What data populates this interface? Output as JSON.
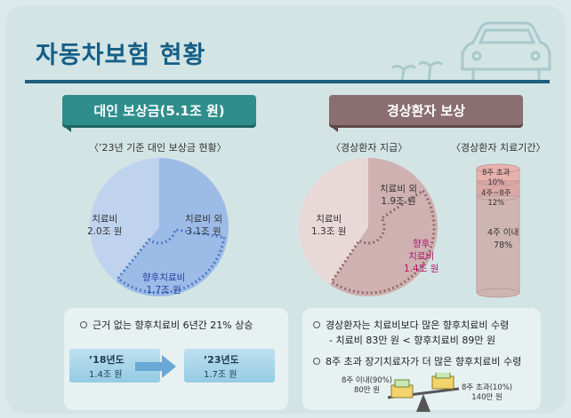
{
  "title": "자동차보험 현황",
  "left": {
    "ribbon": "대인 보상금(5.1조 원)",
    "chart_subtitle": "〈’23년 기준 대인 보상금 현황〉",
    "pie_labels": {
      "treatment_name": "치료비",
      "treatment_value": "2.0조 원",
      "other_name": "치료비 외",
      "other_value": "3.1조 원",
      "post_name": "향후치료비",
      "post_value": "1.7조 원"
    },
    "info_line": "근거 없는 향후치료비 6년간 21% 상승",
    "year_from": {
      "year": "’18년도",
      "value": "1.4조 원"
    },
    "year_to": {
      "year": "’23년도",
      "value": "1.7조 원"
    }
  },
  "right": {
    "ribbon": "경상환자 보상",
    "pie_subtitle": "〈경상환자 지급〉",
    "bar_subtitle": "〈경상환자 치료기간〉",
    "pie_labels": {
      "treatment_name": "치료비",
      "treatment_value": "1.3조 원",
      "other_name": "치료비 외",
      "other_value": "1.9조 원",
      "post_name_1": "향후",
      "post_name_2": "치료비",
      "post_value": "1.4조 원"
    },
    "cyl_labels": {
      "top_name": "8주 초과",
      "top_value": "10%",
      "mid_name": "4주~8주",
      "mid_value": "12%",
      "bot_name": "4주 이내",
      "bot_value": "78%"
    },
    "info_line1": "경상환자는 치료비보다 많은 향후치료비 수령",
    "info_line2": "- 치료비 83만 원 < 향후치료비 89만 원",
    "info_line3": "8주 초과 장기치료자가 더 많은 향후치료비 수령",
    "scale_left_1": "8주 이내(90%)",
    "scale_left_2": "80만 원",
    "scale_right_1": "8주 초과(10%)",
    "scale_right_2": "140만 원"
  },
  "colors": {
    "title": "#155f86",
    "left_ribbon": "#2f8e8c",
    "right_ribbon": "#8a6e72",
    "left_pie_light": "#bfd3ee",
    "left_pie_dark": "#9dbbe7",
    "right_pie_light": "#e9d8d8",
    "right_pie_dark": "#cfb1b1"
  },
  "chart_data": [
    {
      "type": "pie",
      "title": "〈’23년 기준 대인 보상금 현황〉",
      "categories": [
        "치료비 외",
        "치료비"
      ],
      "values": [
        3.1,
        2.0
      ],
      "unit": "조 원",
      "sub_highlight": {
        "name": "향후치료비",
        "value": 1.7,
        "part_of": "치료비 외"
      }
    },
    {
      "type": "pie",
      "title": "〈경상환자 지급〉",
      "categories": [
        "치료비 외",
        "치료비"
      ],
      "values": [
        1.9,
        1.3
      ],
      "unit": "조 원",
      "sub_highlight": {
        "name": "향후 치료비",
        "value": 1.4,
        "part_of": "치료비 외"
      }
    },
    {
      "type": "bar",
      "stacked": true,
      "title": "〈경상환자 치료기간〉",
      "categories": [
        "4주 이내",
        "4주~8주",
        "8주 초과"
      ],
      "values": [
        78,
        12,
        10
      ],
      "unit": "%"
    },
    {
      "type": "bar",
      "categories": [
        "’18년도",
        "’23년도"
      ],
      "values": [
        1.4,
        1.7
      ],
      "unit": "조 원"
    }
  ]
}
